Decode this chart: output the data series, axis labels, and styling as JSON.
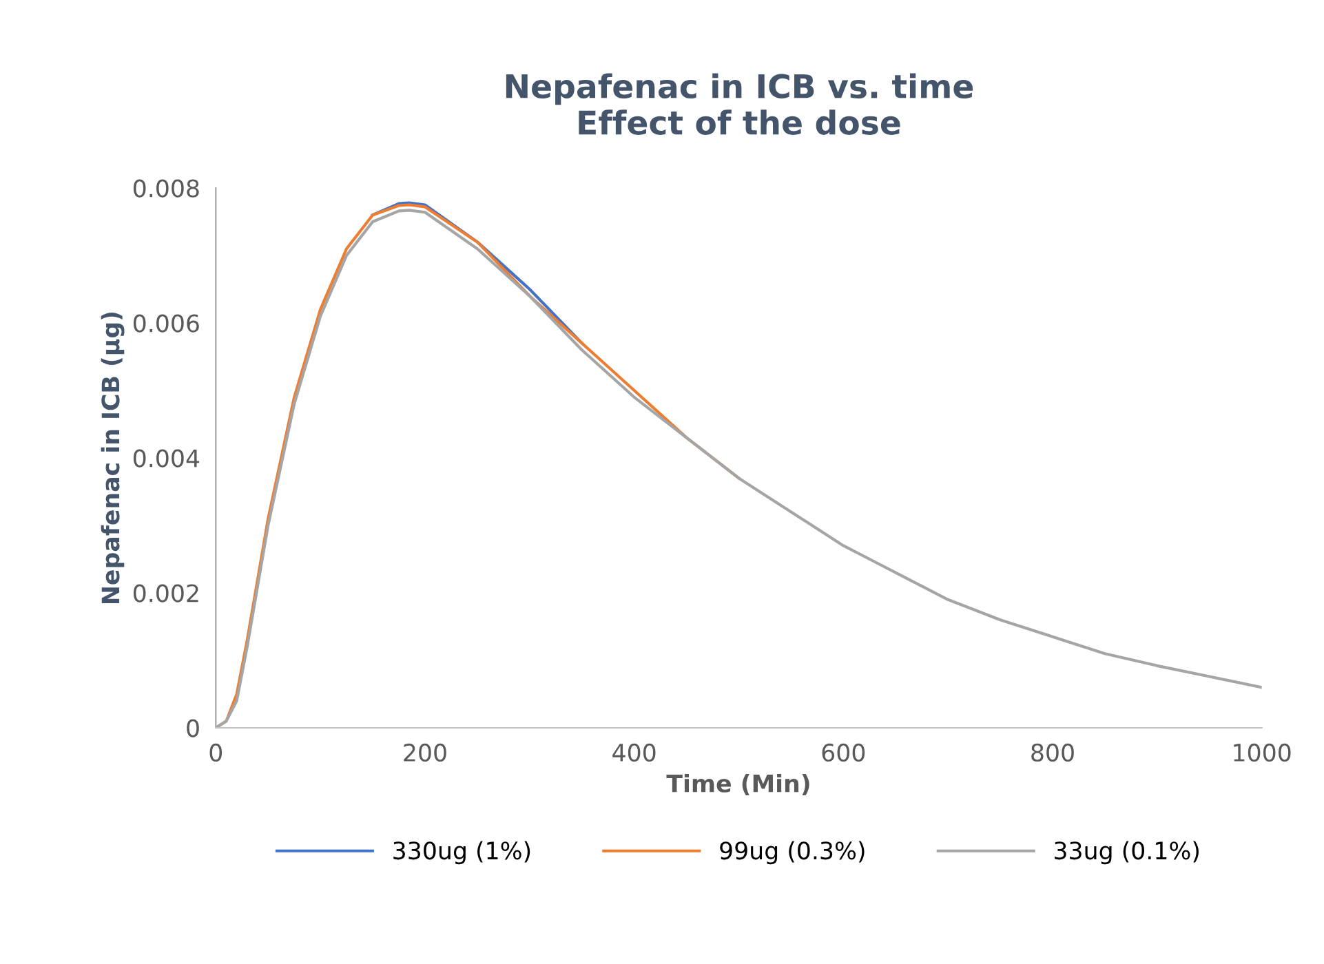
{
  "chart_data": {
    "type": "line",
    "title": "Nepafenac in ICB vs. time\nEffect of the dose",
    "xlabel": "Time (Min)",
    "ylabel": "Nepafenac in ICB (µg)",
    "x": [
      0,
      10,
      20,
      30,
      40,
      50,
      75,
      100,
      125,
      150,
      175,
      185,
      200,
      250,
      300,
      350,
      400,
      450,
      500,
      550,
      600,
      650,
      700,
      750,
      800,
      850,
      900,
      950,
      1000
    ],
    "series": [
      {
        "name": "330ug (1%)",
        "color": "#4472c4",
        "values": [
          null,
          null,
          null,
          null,
          null,
          null,
          null,
          null,
          null,
          0.0076,
          0.00777,
          0.00778,
          0.00775,
          0.0072,
          0.0065,
          0.0057,
          null,
          null,
          null,
          null,
          null,
          null,
          null,
          null,
          null,
          null,
          null,
          null,
          null
        ]
      },
      {
        "name": "99ug (0.3%)",
        "color": "#ed7d31",
        "values": [
          0,
          0.0001,
          0.0005,
          0.0013,
          0.0022,
          0.0031,
          0.0049,
          0.0062,
          0.0071,
          0.0076,
          0.00774,
          0.00775,
          0.00772,
          0.0072,
          0.0064,
          0.0057,
          0.005,
          0.0043,
          0.0037,
          null,
          null,
          null,
          null,
          null,
          null,
          null,
          null,
          null,
          null
        ]
      },
      {
        "name": "33ug (0.1%)",
        "color": "#a5a5a5",
        "values": [
          0,
          0.0001,
          0.0004,
          0.0012,
          0.0021,
          0.003,
          0.0048,
          0.0061,
          0.007,
          0.0075,
          0.00766,
          0.00767,
          0.00764,
          0.0071,
          0.0064,
          0.0056,
          0.0049,
          0.0043,
          0.0037,
          0.0032,
          0.0027,
          0.0023,
          0.0019,
          0.0016,
          0.00135,
          0.0011,
          0.00092,
          0.00076,
          0.0006
        ]
      }
    ],
    "xlim": [
      0,
      1000
    ],
    "xticks": [
      0,
      200,
      400,
      600,
      800,
      1000
    ],
    "ylim": [
      0,
      0.008
    ],
    "yticks": [
      {
        "value": 0,
        "label": "0"
      },
      0.002,
      0.004,
      0.006,
      0.008
    ],
    "grid": false,
    "legend": "bottom",
    "marker": "none",
    "line_style": "solid"
  }
}
